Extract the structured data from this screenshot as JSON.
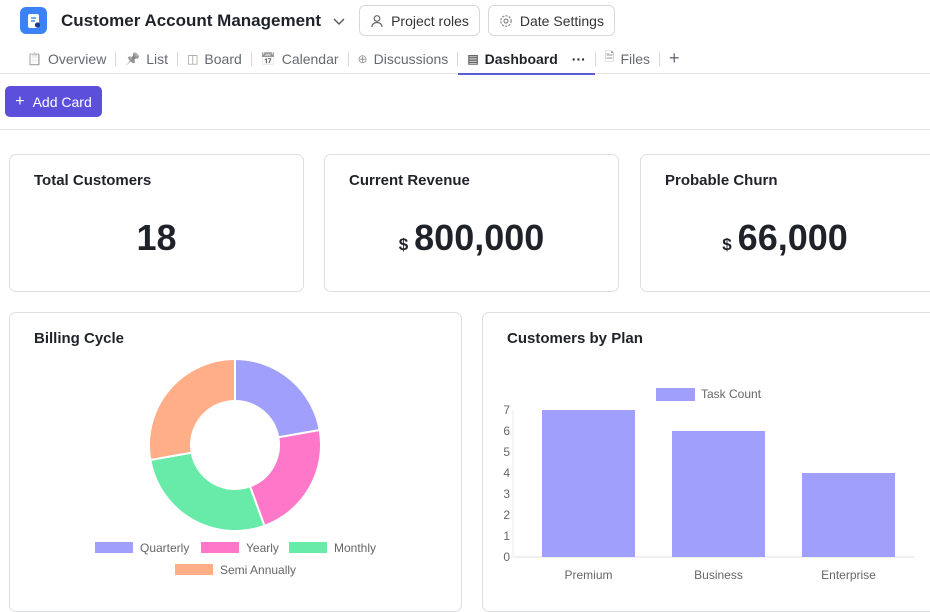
{
  "header": {
    "title": "Customer Account Management",
    "project_roles": "Project roles",
    "date_settings": "Date Settings"
  },
  "tabs": [
    {
      "label": "Overview",
      "icon": "clipboard-icon"
    },
    {
      "label": "List",
      "icon": "pin-icon"
    },
    {
      "label": "Board",
      "icon": "board-icon"
    },
    {
      "label": "Calendar",
      "icon": "calendar-icon"
    },
    {
      "label": "Discussions",
      "icon": "plus-circle-icon"
    },
    {
      "label": "Dashboard",
      "icon": "chart-icon",
      "more": "···"
    },
    {
      "label": "Files",
      "icon": "file-icon"
    }
  ],
  "toolbar": {
    "add_card": "Add Card"
  },
  "cards": [
    {
      "title": "Total Customers",
      "prefix": "",
      "value": "18"
    },
    {
      "title": "Current Revenue",
      "prefix": "$",
      "value": "800,000"
    },
    {
      "title": "Probable Churn",
      "prefix": "$",
      "value": "66,000"
    }
  ],
  "chart_data": [
    {
      "type": "pie",
      "title": "Billing Cycle",
      "categories": [
        "Quarterly",
        "Yearly",
        "Monthly",
        "Semi Annually"
      ],
      "values": [
        4,
        4,
        5,
        5
      ],
      "colors": [
        "#a0a0fc",
        "#ff77c8",
        "#68eaa8",
        "#ffae88"
      ],
      "legend": "bottom"
    },
    {
      "type": "bar",
      "title": "Customers by Plan",
      "categories": [
        "Premium",
        "Business",
        "Enterprise"
      ],
      "series": [
        {
          "name": "Task Count",
          "values": [
            7,
            6,
            4
          ]
        }
      ],
      "ylim": [
        0,
        7
      ],
      "yticks": [
        "0",
        "1",
        "2",
        "3",
        "4",
        "5",
        "6",
        "7"
      ],
      "color": "#a0a0fc",
      "legend": "top"
    }
  ]
}
